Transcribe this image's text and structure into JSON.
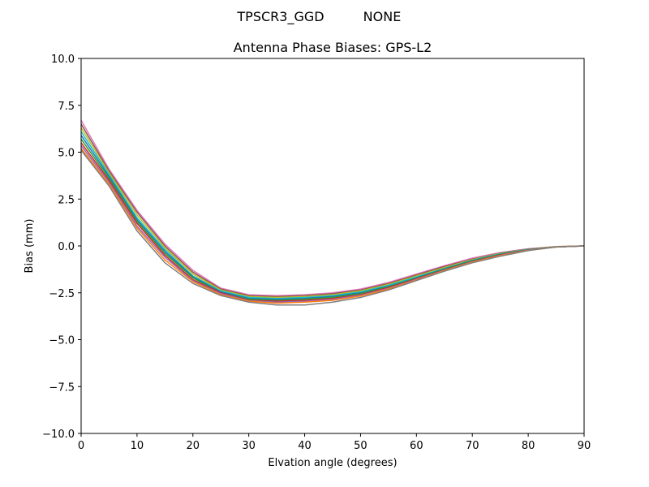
{
  "figure": {
    "suptitle_left": "TPSCR3_GGD",
    "suptitle_right": "NONE",
    "title": "Antenna Phase Biases: GPS-L2"
  },
  "chart_data": {
    "type": "line",
    "title": "Antenna Phase Biases: GPS-L2",
    "suptitle": "TPSCR3_GGD       NONE",
    "xlabel": "Elvation angle (degrees)",
    "ylabel": "Bias (mm)",
    "xlim": [
      0,
      90
    ],
    "ylim": [
      -10,
      10
    ],
    "xticks": [
      0,
      10,
      20,
      30,
      40,
      50,
      60,
      70,
      80,
      90
    ],
    "xtick_labels": [
      "0",
      "10",
      "20",
      "30",
      "40",
      "50",
      "60",
      "70",
      "80",
      "90"
    ],
    "yticks": [
      10,
      7.5,
      5,
      2.5,
      0,
      -2.5,
      -5,
      -7.5,
      -10
    ],
    "ytick_labels": [
      "10.0",
      "7.5",
      "5.0",
      "2.5",
      "0.0",
      "−2.5",
      "−5.0",
      "−7.5",
      "−10.0"
    ],
    "grid": false,
    "legend": null,
    "x": [
      0,
      5,
      10,
      15,
      20,
      25,
      30,
      35,
      40,
      45,
      50,
      55,
      60,
      65,
      70,
      75,
      80,
      85,
      90
    ],
    "series": [
      {
        "name": "az-0",
        "color": "#e377c2",
        "values": [
          6.7,
          4.1,
          1.9,
          0.1,
          -1.3,
          -2.25,
          -2.6,
          -2.65,
          -2.6,
          -2.5,
          -2.3,
          -1.95,
          -1.5,
          -1.05,
          -0.65,
          -0.35,
          -0.15,
          -0.03,
          0.0
        ]
      },
      {
        "name": "az-1",
        "color": "#8c564b",
        "values": [
          6.5,
          4.0,
          1.8,
          0.0,
          -1.4,
          -2.3,
          -2.65,
          -2.7,
          -2.65,
          -2.55,
          -2.35,
          -2.0,
          -1.55,
          -1.1,
          -0.7,
          -0.38,
          -0.17,
          -0.04,
          0.0
        ]
      },
      {
        "name": "az-2",
        "color": "#bcbd22",
        "values": [
          6.3,
          3.9,
          1.65,
          -0.1,
          -1.5,
          -2.35,
          -2.7,
          -2.75,
          -2.7,
          -2.6,
          -2.4,
          -2.05,
          -1.6,
          -1.15,
          -0.73,
          -0.4,
          -0.18,
          -0.04,
          0.0
        ]
      },
      {
        "name": "az-3",
        "color": "#17becf",
        "values": [
          6.1,
          3.8,
          1.5,
          -0.2,
          -1.6,
          -2.4,
          -2.75,
          -2.8,
          -2.75,
          -2.65,
          -2.45,
          -2.1,
          -1.65,
          -1.2,
          -0.76,
          -0.42,
          -0.19,
          -0.05,
          0.0
        ]
      },
      {
        "name": "az-4",
        "color": "#1f77b4",
        "values": [
          5.9,
          3.7,
          1.4,
          -0.3,
          -1.65,
          -2.45,
          -2.8,
          -2.85,
          -2.8,
          -2.7,
          -2.5,
          -2.15,
          -1.7,
          -1.22,
          -0.78,
          -0.44,
          -0.2,
          -0.05,
          0.0
        ]
      },
      {
        "name": "az-5",
        "color": "#2ca02c",
        "values": [
          5.7,
          3.6,
          1.3,
          -0.4,
          -1.7,
          -2.5,
          -2.85,
          -2.9,
          -2.85,
          -2.75,
          -2.55,
          -2.18,
          -1.72,
          -1.25,
          -0.8,
          -0.46,
          -0.21,
          -0.05,
          0.0
        ]
      },
      {
        "name": "az-6",
        "color": "#d62728",
        "values": [
          5.5,
          3.5,
          1.2,
          -0.5,
          -1.8,
          -2.5,
          -2.9,
          -2.95,
          -2.9,
          -2.8,
          -2.6,
          -2.22,
          -1.75,
          -1.28,
          -0.83,
          -0.48,
          -0.22,
          -0.05,
          0.0
        ]
      },
      {
        "name": "az-7",
        "color": "#9467bd",
        "values": [
          5.35,
          3.4,
          1.05,
          -0.6,
          -1.85,
          -2.55,
          -2.92,
          -3.0,
          -2.95,
          -2.85,
          -2.63,
          -2.26,
          -1.78,
          -1.3,
          -0.85,
          -0.5,
          -0.23,
          -0.05,
          0.0
        ]
      },
      {
        "name": "az-8",
        "color": "#ff7f0e",
        "values": [
          5.2,
          3.3,
          0.95,
          -0.75,
          -1.9,
          -2.6,
          -2.95,
          -3.05,
          -3.0,
          -2.9,
          -2.67,
          -2.3,
          -1.82,
          -1.32,
          -0.87,
          -0.52,
          -0.24,
          -0.05,
          0.0
        ]
      },
      {
        "name": "az-9",
        "color": "#7f7f7f",
        "values": [
          5.1,
          3.2,
          0.8,
          -0.9,
          -2.0,
          -2.65,
          -3.0,
          -3.15,
          -3.15,
          -3.0,
          -2.75,
          -2.35,
          -1.85,
          -1.35,
          -0.9,
          -0.55,
          -0.25,
          -0.05,
          0.0
        ]
      }
    ]
  }
}
